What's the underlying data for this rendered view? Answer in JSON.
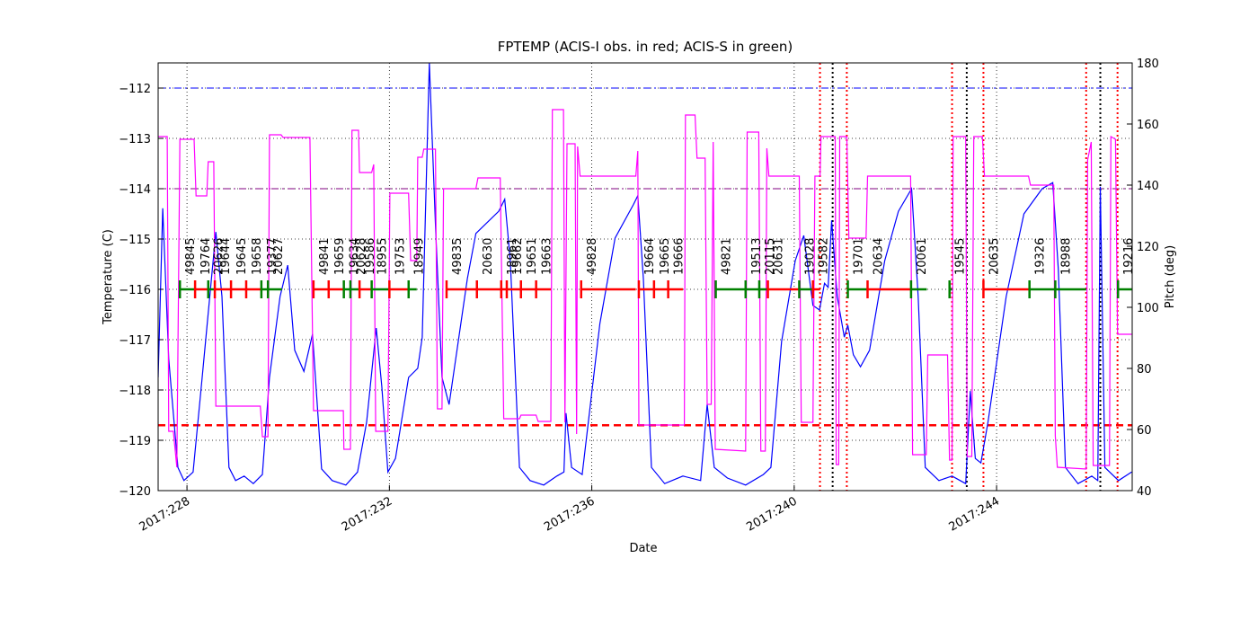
{
  "chart_data": {
    "type": "line",
    "title": "FPTEMP (ACIS-I obs. in red; ACIS-S in green)",
    "xlabel": "Date",
    "ylabel": "Temperature (C)",
    "y2label": "Pitch (deg)",
    "y2color": "#ff00ff",
    "grid": true,
    "xlim": [
      227.43,
      246.68
    ],
    "xticks": [
      {
        "value": 228,
        "label": "2017:228"
      },
      {
        "value": 232,
        "label": "2017:232"
      },
      {
        "value": 236,
        "label": "2017:236"
      },
      {
        "value": 240,
        "label": "2017:240"
      },
      {
        "value": 244,
        "label": "2017:244"
      }
    ],
    "ylim": [
      -120,
      -111.5
    ],
    "yticks": [
      {
        "value": -120,
        "label": "−120"
      },
      {
        "value": -119,
        "label": "−119"
      },
      {
        "value": -118,
        "label": "−118"
      },
      {
        "value": -117,
        "label": "−117"
      },
      {
        "value": -116,
        "label": "−116"
      },
      {
        "value": -115,
        "label": "−115"
      },
      {
        "value": -114,
        "label": "−114"
      },
      {
        "value": -113,
        "label": "−113"
      },
      {
        "value": -112,
        "label": "−112"
      }
    ],
    "y2lim": [
      40,
      180
    ],
    "y2ticks": [
      40,
      60,
      80,
      100,
      120,
      140,
      160,
      180
    ],
    "series": [
      {
        "color": "#0000ff",
        "axis": "y",
        "x": [
          227.43,
          227.52,
          227.64,
          227.82,
          227.94,
          228.12,
          228.3,
          228.57,
          228.69,
          228.83,
          228.96,
          229.13,
          229.31,
          229.49,
          229.63,
          229.84,
          229.99,
          230.13,
          230.31,
          230.48,
          230.55,
          230.66,
          230.87,
          231.14,
          231.37,
          231.55,
          231.74,
          231.85,
          231.97,
          232.12,
          232.38,
          232.56,
          232.65,
          232.79,
          232.91,
          233.04,
          233.18,
          233.54,
          233.71,
          234.16,
          234.28,
          234.39,
          234.57,
          234.78,
          235.05,
          235.31,
          235.45,
          235.49,
          235.6,
          235.81,
          236.16,
          236.46,
          236.82,
          236.91,
          237.02,
          237.18,
          237.44,
          237.8,
          238.15,
          238.28,
          238.42,
          238.68,
          239.04,
          239.39,
          239.54,
          239.75,
          240.02,
          240.19,
          240.37,
          240.5,
          240.6,
          240.67,
          240.74,
          240.85,
          240.99,
          241.06,
          241.17,
          241.31,
          241.49,
          241.79,
          242.06,
          242.32,
          242.45,
          242.59,
          242.86,
          243.12,
          243.39,
          243.48,
          243.58,
          243.69,
          243.83,
          244.19,
          244.54,
          244.9,
          245.11,
          245.22,
          245.36,
          245.61,
          245.88,
          246.0,
          246.05,
          246.14,
          246.41,
          246.67
        ],
        "values": [
          -117.75,
          -114.39,
          -117.39,
          -119.54,
          -119.8,
          -119.63,
          -117.75,
          -114.86,
          -116.14,
          -119.54,
          -119.8,
          -119.71,
          -119.86,
          -119.68,
          -117.75,
          -116.14,
          -115.52,
          -117.21,
          -117.63,
          -116.89,
          -117.93,
          -119.57,
          -119.8,
          -119.89,
          -119.63,
          -118.64,
          -116.77,
          -117.93,
          -119.63,
          -119.36,
          -117.75,
          -117.57,
          -116.95,
          -111.5,
          -114.71,
          -117.75,
          -118.29,
          -115.79,
          -114.89,
          -114.45,
          -114.21,
          -115.43,
          -119.54,
          -119.8,
          -119.89,
          -119.71,
          -119.63,
          -118.46,
          -119.54,
          -119.68,
          -116.68,
          -114.98,
          -114.32,
          -114.14,
          -115.79,
          -119.54,
          -119.86,
          -119.71,
          -119.8,
          -118.29,
          -119.54,
          -119.75,
          -119.89,
          -119.68,
          -119.54,
          -117.04,
          -115.43,
          -114.93,
          -116.32,
          -116.41,
          -115.88,
          -115.96,
          -114.63,
          -116.14,
          -116.95,
          -116.71,
          -117.3,
          -117.54,
          -117.21,
          -115.43,
          -114.45,
          -114.0,
          -116.14,
          -119.54,
          -119.8,
          -119.71,
          -119.86,
          -118.02,
          -119.36,
          -119.45,
          -118.64,
          -116.14,
          -114.5,
          -114.0,
          -113.88,
          -115.61,
          -119.54,
          -119.86,
          -119.71,
          -119.8,
          -113.96,
          -119.54,
          -119.8,
          -119.63
        ]
      },
      {
        "color": "#ff00ff",
        "axis": "y2",
        "x": [
          227.43,
          227.61,
          227.64,
          227.73,
          227.8,
          227.86,
          228.14,
          228.18,
          228.39,
          228.42,
          228.53,
          228.57,
          229.45,
          229.49,
          229.6,
          229.63,
          229.86,
          229.9,
          230.43,
          230.5,
          231.09,
          231.1,
          231.23,
          231.26,
          231.39,
          231.41,
          231.65,
          231.69,
          231.73,
          231.97,
          232.01,
          232.38,
          232.42,
          232.54,
          232.56,
          232.65,
          232.68,
          232.91,
          232.95,
          233.04,
          233.07,
          233.71,
          233.75,
          234.19,
          234.26,
          234.57,
          234.6,
          234.9,
          234.94,
          235.19,
          235.22,
          235.44,
          235.47,
          235.51,
          235.67,
          235.7,
          235.72,
          235.77,
          236.87,
          236.91,
          236.93,
          237.83,
          237.85,
          238.04,
          238.08,
          238.24,
          238.28,
          238.36,
          238.4,
          238.44,
          239.04,
          239.07,
          239.3,
          239.34,
          239.43,
          239.46,
          239.5,
          240.1,
          240.14,
          240.37,
          240.41,
          240.51,
          240.53,
          240.81,
          240.83,
          240.88,
          240.9,
          241.04,
          241.08,
          241.42,
          241.45,
          242.3,
          242.34,
          242.61,
          242.64,
          243.03,
          243.07,
          243.12,
          243.14,
          243.39,
          243.42,
          243.51,
          243.55,
          243.72,
          243.76,
          244.63,
          244.67,
          245.13,
          245.16,
          245.2,
          245.77,
          245.8,
          245.87,
          245.91,
          246.23,
          246.26,
          246.35,
          246.39,
          246.67
        ],
        "values": [
          155.88,
          155.88,
          59.41,
          59.41,
          47.65,
          155.0,
          155.0,
          136.47,
          136.47,
          147.65,
          147.65,
          67.65,
          67.65,
          57.65,
          57.65,
          156.47,
          156.47,
          155.59,
          155.59,
          66.18,
          66.18,
          53.53,
          53.53,
          157.94,
          157.94,
          144.12,
          144.12,
          146.76,
          59.41,
          59.41,
          137.35,
          137.35,
          115.29,
          115.29,
          149.12,
          149.12,
          151.76,
          151.76,
          66.76,
          66.76,
          138.82,
          138.82,
          142.35,
          142.35,
          63.53,
          63.53,
          64.71,
          64.71,
          62.65,
          62.65,
          164.71,
          164.71,
          62.35,
          153.53,
          153.53,
          58.53,
          152.65,
          142.94,
          142.94,
          151.18,
          61.47,
          61.47,
          162.94,
          162.94,
          148.82,
          148.82,
          68.24,
          68.24,
          154.12,
          53.53,
          52.94,
          157.35,
          157.35,
          52.94,
          52.94,
          152.06,
          142.94,
          142.94,
          62.35,
          62.35,
          142.94,
          142.94,
          155.88,
          155.88,
          48.53,
          48.53,
          155.88,
          155.88,
          122.65,
          122.65,
          142.94,
          142.94,
          51.76,
          51.76,
          84.41,
          84.41,
          50.0,
          50.0,
          155.88,
          155.88,
          51.18,
          51.18,
          155.88,
          155.88,
          142.94,
          142.94,
          140.0,
          140.0,
          57.94,
          47.65,
          47.06,
          148.24,
          154.12,
          48.24,
          48.24,
          155.88,
          155.0,
          91.18,
          91.18
        ]
      }
    ],
    "hlines": [
      {
        "value": -112,
        "color": "#0000ff",
        "style": "dashdot"
      },
      {
        "value": -114,
        "color": "#800080",
        "style": "dashdot"
      },
      {
        "value": -118.7,
        "color": "#ff0000",
        "style": "dashed"
      }
    ],
    "vlines": [
      {
        "x": 240.51,
        "color": "#ff0000"
      },
      {
        "x": 241.04,
        "color": "#ff0000"
      },
      {
        "x": 243.12,
        "color": "#ff0000"
      },
      {
        "x": 243.74,
        "color": "#ff0000"
      },
      {
        "x": 245.77,
        "color": "#ff0000"
      },
      {
        "x": 246.39,
        "color": "#ff0000"
      },
      {
        "x": 240.76,
        "color": "#000000"
      },
      {
        "x": 243.41,
        "color": "#000000"
      },
      {
        "x": 246.05,
        "color": "#000000"
      }
    ],
    "observation_level": -116,
    "observations": [
      {
        "obsid": "49845",
        "start": 227.86,
        "stop": 228.16,
        "color": "#008000"
      },
      {
        "obsid": "19764",
        "start": 228.16,
        "stop": 228.42,
        "color": "#ff0000"
      },
      {
        "obsid": "20626",
        "start": 228.42,
        "stop": 228.55,
        "color": "#008000"
      },
      {
        "obsid": "19644",
        "start": 228.55,
        "stop": 228.87,
        "color": "#ff0000"
      },
      {
        "obsid": "19645",
        "start": 228.87,
        "stop": 229.17,
        "color": "#ff0000"
      },
      {
        "obsid": "19658",
        "start": 229.17,
        "stop": 229.47,
        "color": "#ff0000"
      },
      {
        "obsid": "19377",
        "start": 229.47,
        "stop": 229.6,
        "color": "#008000"
      },
      {
        "obsid": "20627",
        "start": 229.6,
        "stop": 229.88,
        "color": "#008000"
      },
      {
        "obsid": "49841",
        "start": 230.5,
        "stop": 230.8,
        "color": "#ff0000"
      },
      {
        "obsid": "19659",
        "start": 230.8,
        "stop": 231.1,
        "color": "#ff0000"
      },
      {
        "obsid": "19634",
        "start": 231.1,
        "stop": 231.23,
        "color": "#008000"
      },
      {
        "obsid": "20628",
        "start": 231.23,
        "stop": 231.41,
        "color": "#008000"
      },
      {
        "obsid": "19586",
        "start": 231.41,
        "stop": 231.65,
        "color": "#ff0000"
      },
      {
        "obsid": "18955",
        "start": 231.65,
        "stop": 232.0,
        "color": "#008000"
      },
      {
        "obsid": "19753",
        "start": 232.0,
        "stop": 232.38,
        "color": "#ff0000"
      },
      {
        "obsid": "18949",
        "start": 232.38,
        "stop": 232.54,
        "color": "#008000"
      },
      {
        "obsid": "49835",
        "start": 233.13,
        "stop": 233.73,
        "color": "#ff0000"
      },
      {
        "obsid": "20630",
        "start": 233.73,
        "stop": 234.21,
        "color": "#ff0000"
      },
      {
        "obsid": "18961",
        "start": 234.21,
        "stop": 234.32,
        "color": "#ff0000"
      },
      {
        "obsid": "19662",
        "start": 234.32,
        "stop": 234.6,
        "color": "#ff0000"
      },
      {
        "obsid": "19651",
        "start": 234.6,
        "stop": 234.9,
        "color": "#ff0000"
      },
      {
        "obsid": "19663",
        "start": 234.9,
        "stop": 235.19,
        "color": "#ff0000"
      },
      {
        "obsid": "49828",
        "start": 235.79,
        "stop": 236.87,
        "color": "#ff0000"
      },
      {
        "obsid": "19664",
        "start": 236.93,
        "stop": 237.23,
        "color": "#ff0000"
      },
      {
        "obsid": "19665",
        "start": 237.23,
        "stop": 237.51,
        "color": "#ff0000"
      },
      {
        "obsid": "19666",
        "start": 237.51,
        "stop": 237.8,
        "color": "#ff0000"
      },
      {
        "obsid": "49821",
        "start": 238.45,
        "stop": 239.04,
        "color": "#008000"
      },
      {
        "obsid": "19513",
        "start": 239.04,
        "stop": 239.31,
        "color": "#008000"
      },
      {
        "obsid": "20115",
        "start": 239.31,
        "stop": 239.48,
        "color": "#008000"
      },
      {
        "obsid": "20631",
        "start": 239.48,
        "stop": 240.1,
        "color": "#ff0000"
      },
      {
        "obsid": "19028",
        "start": 240.1,
        "stop": 240.37,
        "color": "#008000"
      },
      {
        "obsid": "19582",
        "start": 240.37,
        "stop": 240.51,
        "color": "#ff0000"
      },
      {
        "obsid": "19701",
        "start": 241.06,
        "stop": 241.45,
        "color": "#008000"
      },
      {
        "obsid": "20634",
        "start": 241.45,
        "stop": 242.31,
        "color": "#ff0000"
      },
      {
        "obsid": "20061",
        "start": 242.31,
        "stop": 242.62,
        "color": "#008000"
      },
      {
        "obsid": "19545",
        "start": 243.07,
        "stop": 243.12,
        "color": "#008000"
      },
      {
        "obsid": "20635",
        "start": 243.74,
        "stop": 244.65,
        "color": "#ff0000"
      },
      {
        "obsid": "19326",
        "start": 244.65,
        "stop": 245.16,
        "color": "#008000"
      },
      {
        "obsid": "18988",
        "start": 245.16,
        "stop": 245.77,
        "color": "#008000"
      },
      {
        "obsid": "19216",
        "start": 246.4,
        "stop": 246.67,
        "color": "#008000"
      }
    ]
  }
}
